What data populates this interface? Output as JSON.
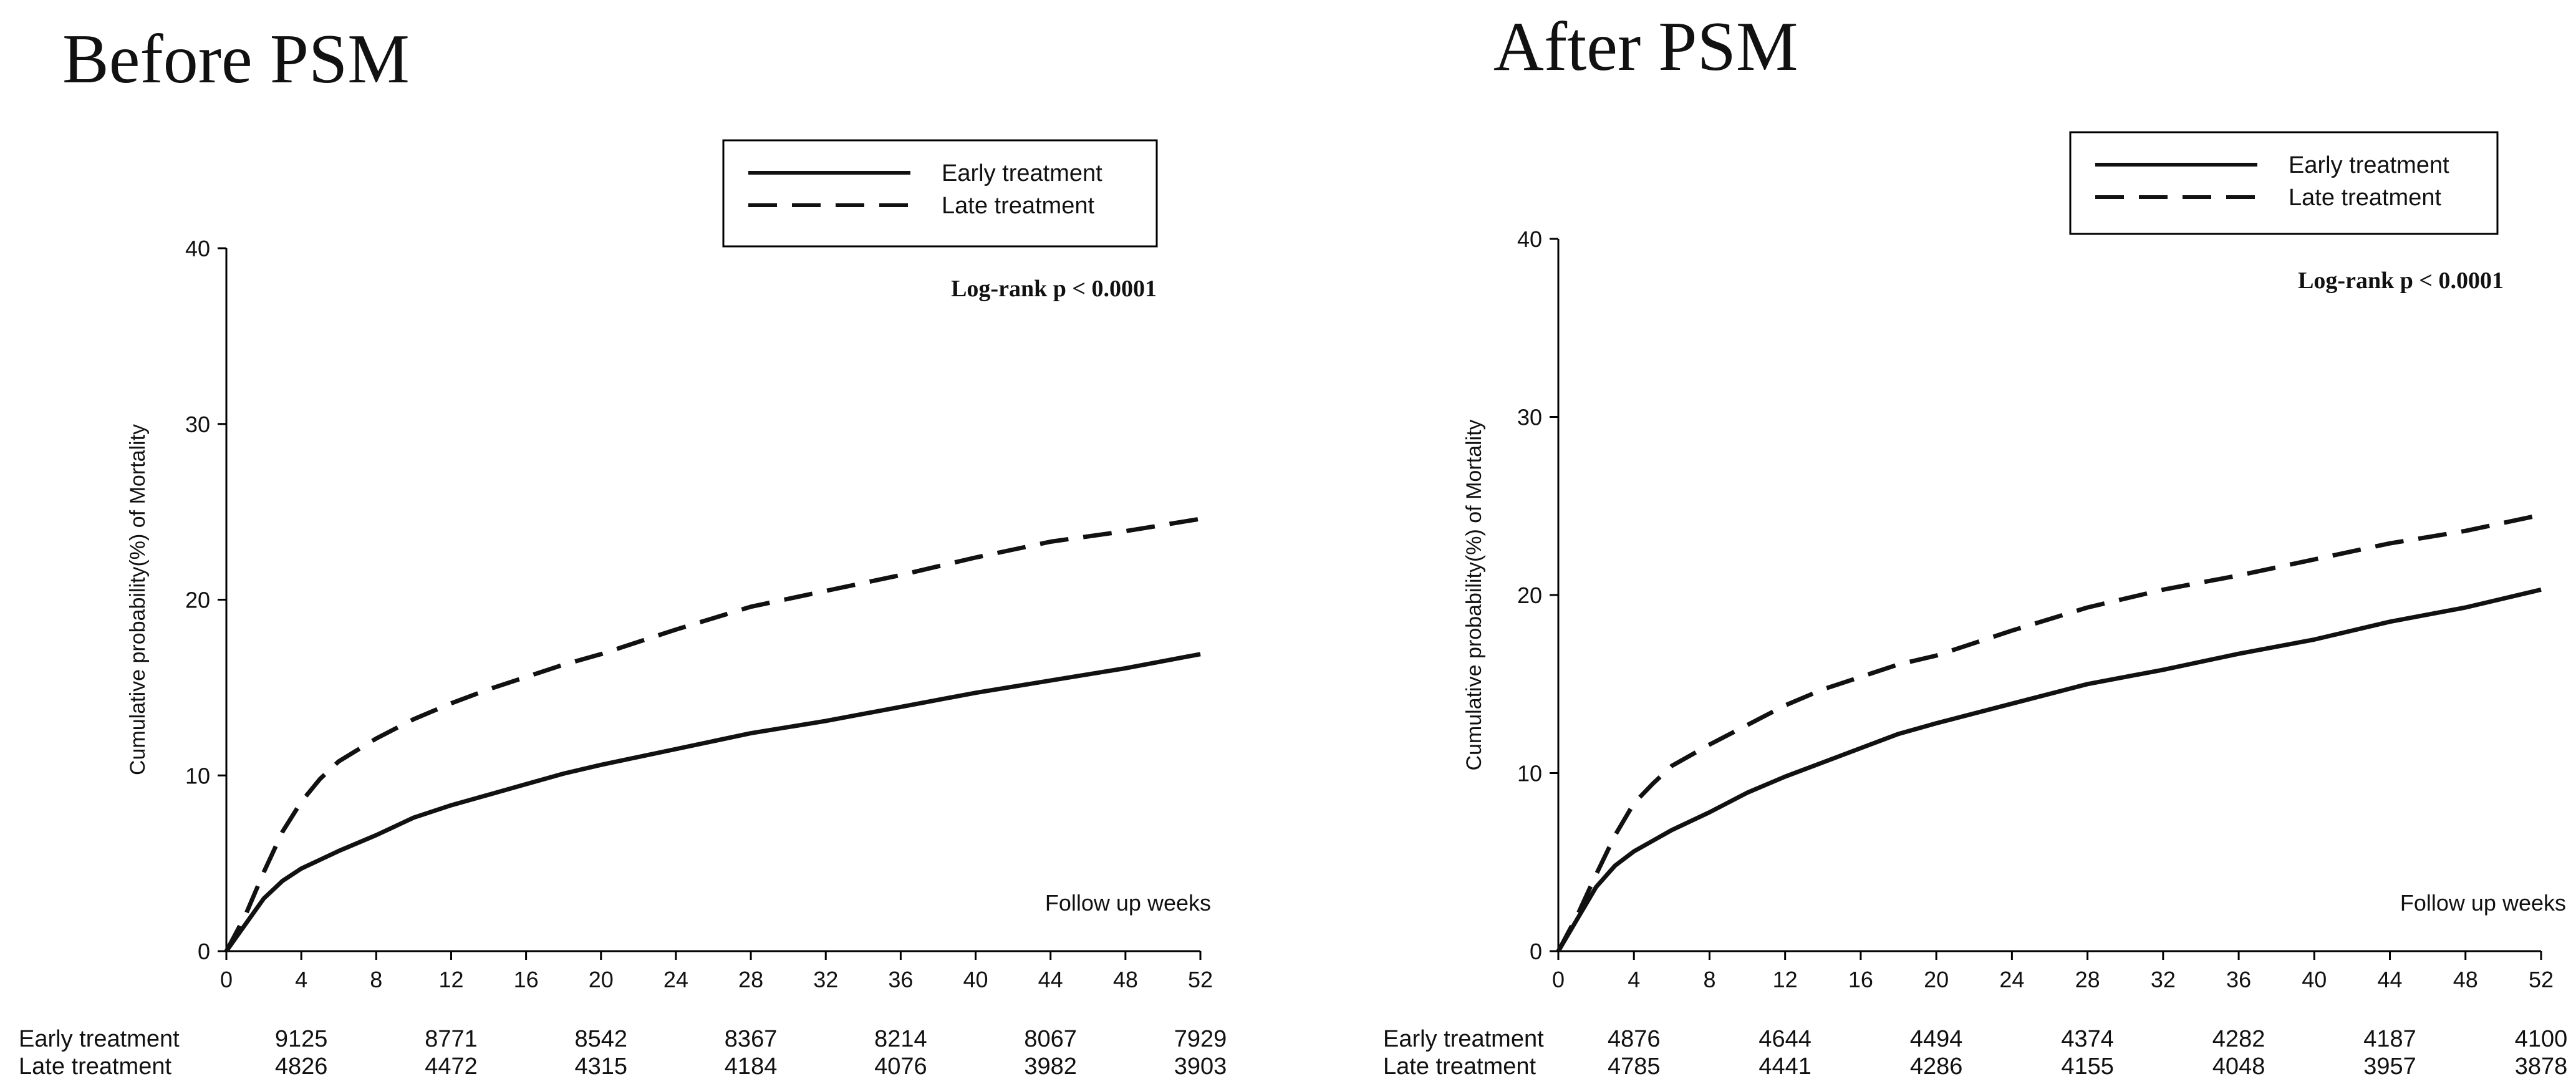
{
  "chart_data": [
    {
      "type": "line",
      "title": "Before PSM",
      "xlabel": "Follow up weeks",
      "ylabel": "Cumulative probability(%) of  Mortality",
      "xlim": [
        0,
        52
      ],
      "ylim": [
        0,
        40
      ],
      "xticks": [
        0,
        4,
        8,
        12,
        16,
        20,
        24,
        28,
        32,
        36,
        40,
        44,
        48,
        52
      ],
      "yticks": [
        0,
        10,
        20,
        30,
        40
      ],
      "annotation": "Log-rank p < 0.0001",
      "legend_position": "top-right",
      "series": [
        {
          "name": "Early treatment",
          "style": "solid",
          "x": [
            0,
            1,
            2,
            3,
            4,
            5,
            6,
            8,
            10,
            12,
            14,
            16,
            18,
            20,
            24,
            28,
            32,
            36,
            40,
            44,
            48,
            52
          ],
          "y": [
            0,
            1.5,
            3.0,
            4.0,
            4.7,
            5.2,
            5.7,
            6.6,
            7.6,
            8.3,
            8.9,
            9.5,
            10.1,
            10.6,
            11.5,
            12.4,
            13.1,
            13.9,
            14.7,
            15.4,
            16.1,
            16.9
          ]
        },
        {
          "name": "Late treatment",
          "style": "dashed",
          "x": [
            0,
            1,
            2,
            3,
            4,
            5,
            6,
            8,
            10,
            12,
            14,
            16,
            18,
            20,
            24,
            28,
            32,
            36,
            40,
            44,
            48,
            52
          ],
          "y": [
            0,
            2.0,
            4.5,
            6.8,
            8.5,
            9.8,
            10.8,
            12.1,
            13.2,
            14.1,
            14.9,
            15.6,
            16.3,
            16.9,
            18.3,
            19.6,
            20.5,
            21.4,
            22.4,
            23.3,
            23.9,
            24.6
          ]
        }
      ],
      "risk_table": {
        "x": [
          4,
          12,
          20,
          28,
          36,
          44,
          52
        ],
        "rows": [
          {
            "label": "Early treatment",
            "values": [
              "9125",
              "8771",
              "8542",
              "8367",
              "8214",
              "8067",
              "7929"
            ]
          },
          {
            "label": "Late treatment",
            "values": [
              "4826",
              "4472",
              "4315",
              "4184",
              "4076",
              "3982",
              "3903"
            ]
          }
        ]
      }
    },
    {
      "type": "line",
      "title": "After PSM",
      "xlabel": "Follow up weeks",
      "ylabel": "Cumulative probability(%) of  Mortality",
      "xlim": [
        0,
        52
      ],
      "ylim": [
        0,
        40
      ],
      "xticks": [
        0,
        4,
        8,
        12,
        16,
        20,
        24,
        28,
        32,
        36,
        40,
        44,
        48,
        52
      ],
      "yticks": [
        0,
        10,
        20,
        30,
        40
      ],
      "annotation": "Log-rank p < 0.0001",
      "legend_position": "top-right",
      "series": [
        {
          "name": "Early treatment",
          "style": "solid",
          "x": [
            0,
            1,
            2,
            3,
            4,
            5,
            6,
            8,
            10,
            12,
            14,
            16,
            18,
            20,
            24,
            28,
            32,
            36,
            40,
            44,
            48,
            52
          ],
          "y": [
            0,
            1.8,
            3.6,
            4.8,
            5.6,
            6.2,
            6.8,
            7.8,
            8.9,
            9.8,
            10.6,
            11.4,
            12.2,
            12.8,
            13.9,
            15.0,
            15.8,
            16.7,
            17.5,
            18.5,
            19.3,
            20.3
          ]
        },
        {
          "name": "Late treatment",
          "style": "dashed",
          "x": [
            0,
            1,
            2,
            3,
            4,
            5,
            6,
            8,
            10,
            12,
            14,
            16,
            18,
            20,
            24,
            28,
            32,
            36,
            40,
            44,
            48,
            52
          ],
          "y": [
            0,
            2.0,
            4.3,
            6.5,
            8.3,
            9.4,
            10.4,
            11.6,
            12.7,
            13.8,
            14.7,
            15.4,
            16.1,
            16.6,
            18.0,
            19.3,
            20.3,
            21.1,
            22.0,
            22.9,
            23.6,
            24.5
          ]
        }
      ],
      "risk_table": {
        "x": [
          4,
          12,
          20,
          28,
          36,
          44,
          52
        ],
        "rows": [
          {
            "label": "Early treatment",
            "values": [
              "4876",
              "4644",
              "4494",
              "4374",
              "4282",
              "4187",
              "4100"
            ]
          },
          {
            "label": "Late treatment",
            "values": [
              "4785",
              "4441",
              "4286",
              "4155",
              "4048",
              "3957",
              "3878"
            ]
          }
        ]
      }
    }
  ]
}
